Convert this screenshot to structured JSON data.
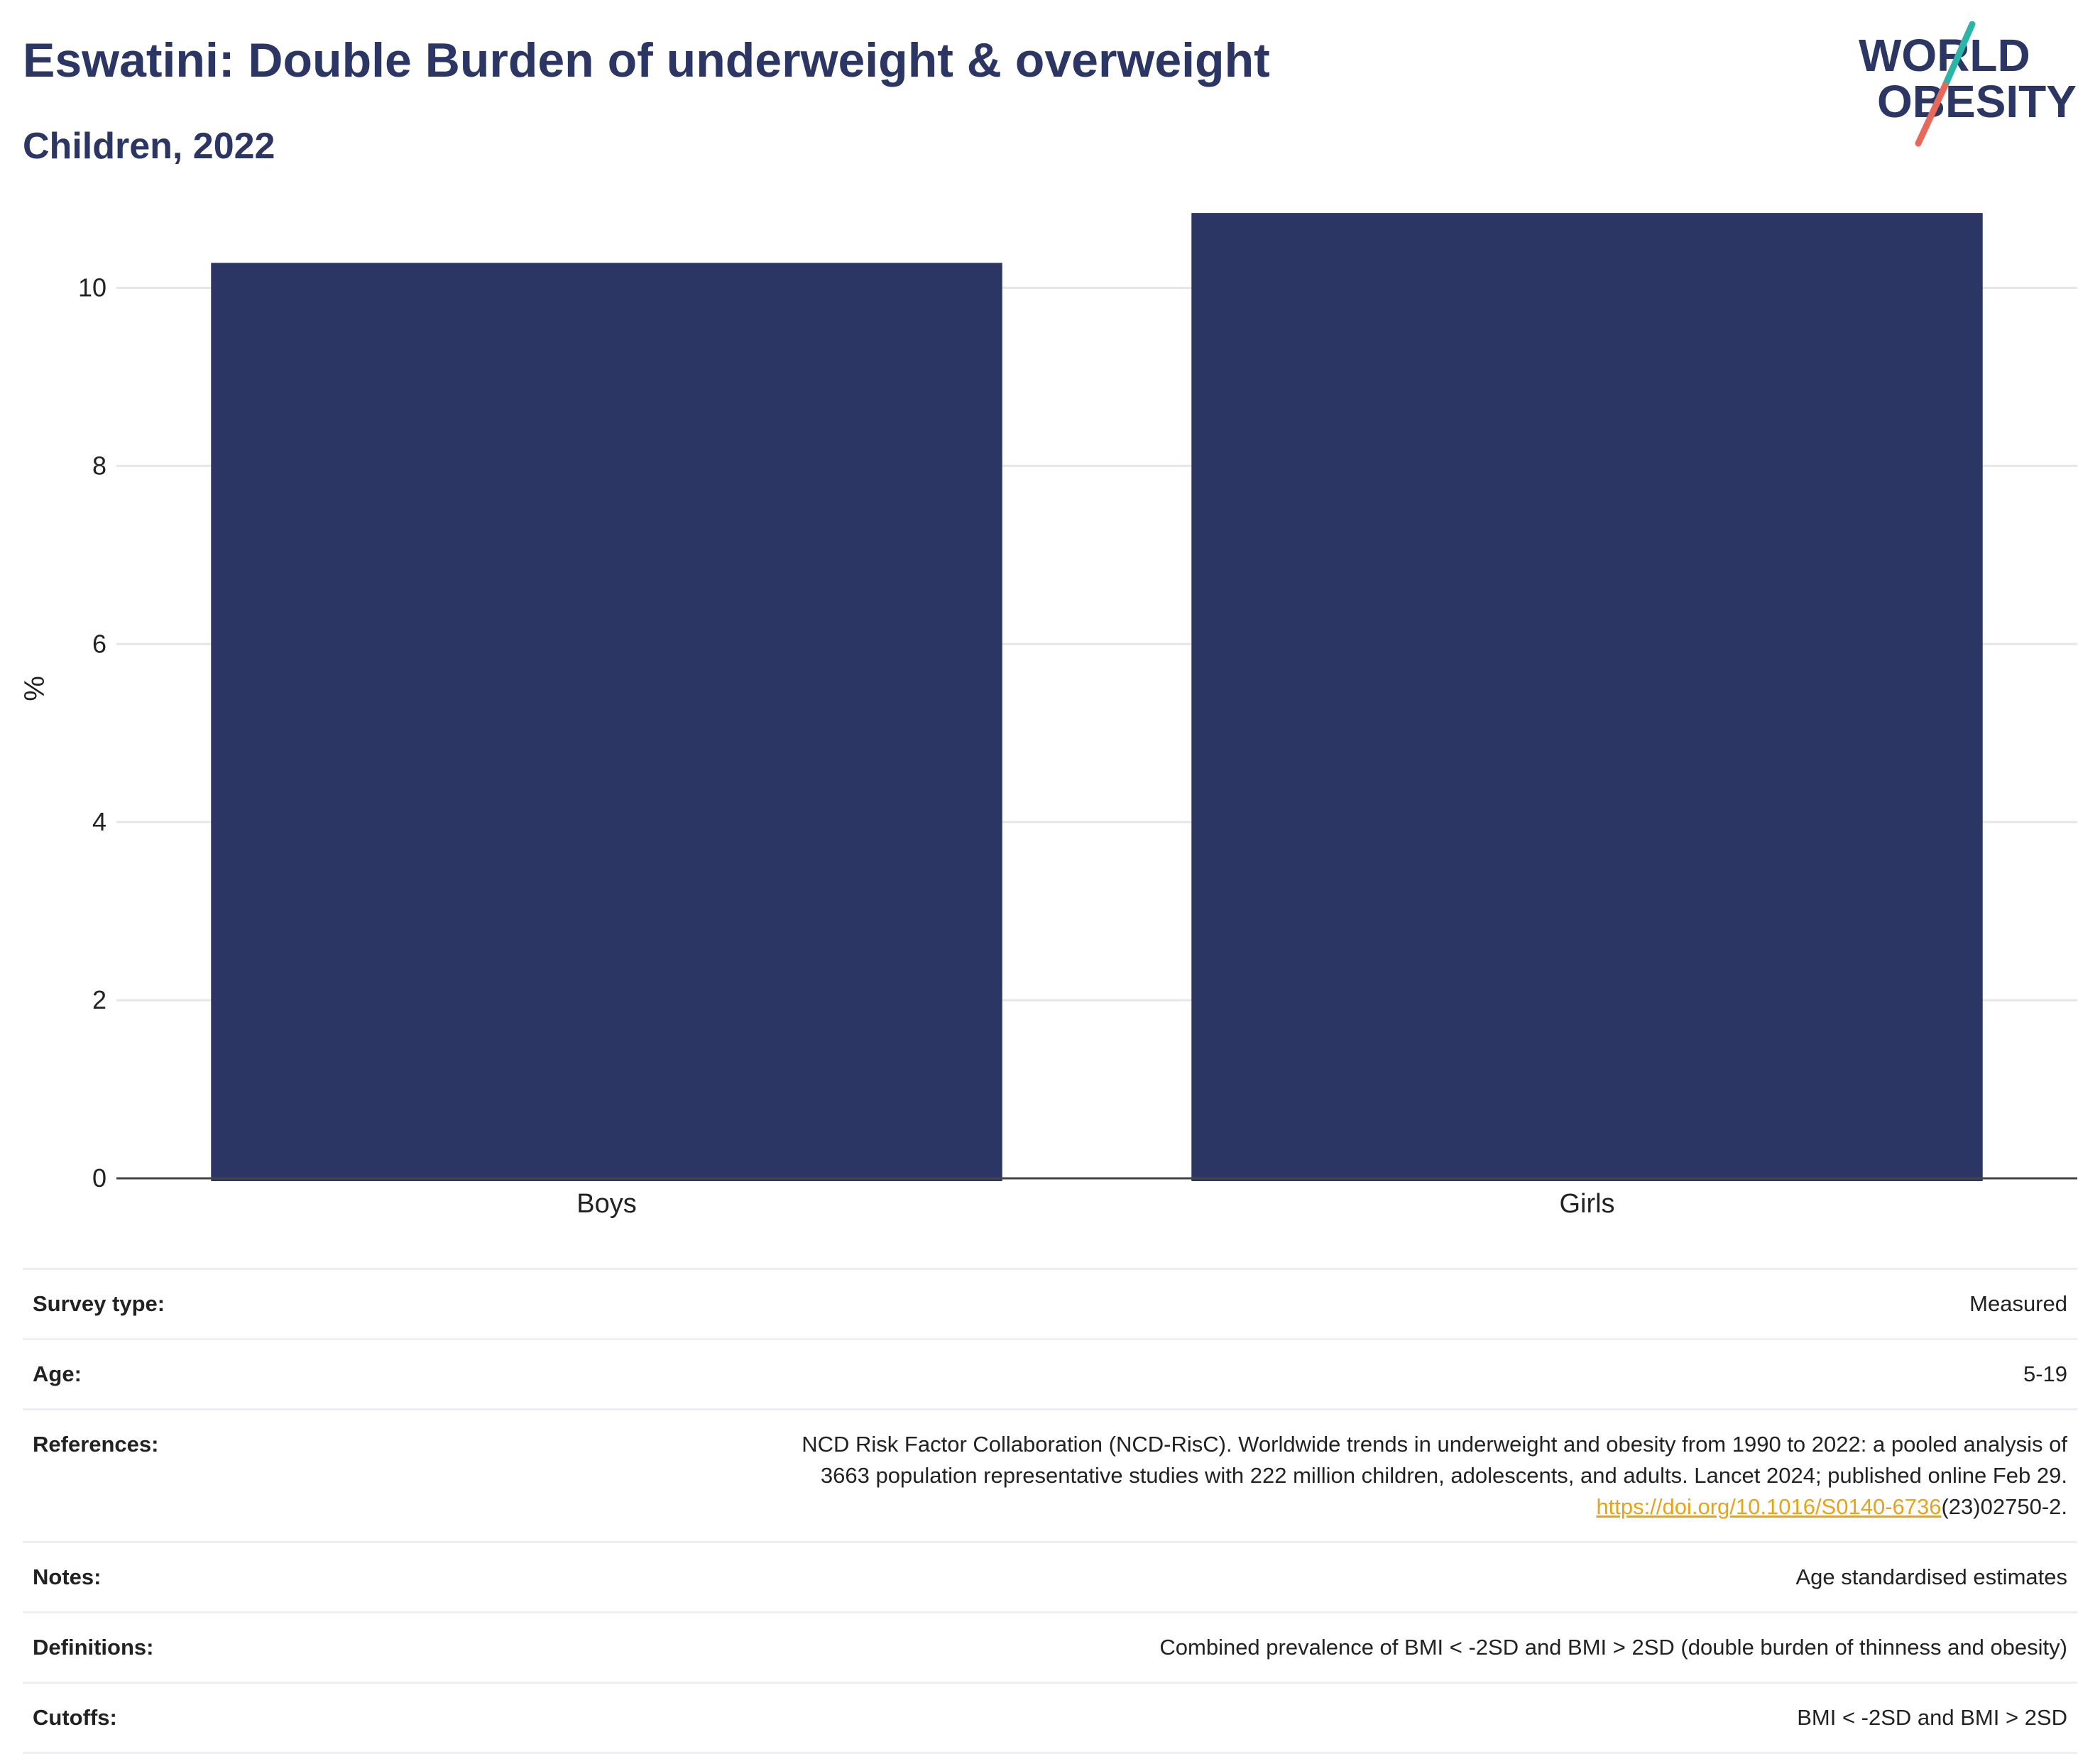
{
  "header": {
    "title": "Eswatini: Double Burden of underweight & overweight",
    "subtitle": "Children, 2022"
  },
  "logo": {
    "line1": "WORLD",
    "line2": "OBESITY"
  },
  "chart_data": {
    "type": "bar",
    "categories": [
      "Boys",
      "Girls"
    ],
    "series": [
      {
        "values": [
          10.28,
          10.84
        ]
      }
    ],
    "ylabel": "%",
    "ylim": [
      0,
      11
    ],
    "yticks": [
      0,
      2,
      4,
      6,
      8,
      10
    ],
    "grid": true,
    "colors": {
      "bar": "#2b3664",
      "grid": "#e6e6e6",
      "axis": "#444444"
    }
  },
  "meta": [
    {
      "key": "Survey type:",
      "value": "Measured"
    },
    {
      "key": "Age:",
      "value": "5-19"
    },
    {
      "key": "References:",
      "value_lines": [
        "NCD Risk Factor Collaboration (NCD-RisC). Worldwide trends in underweight and obesity from 1990 to 2022: a pooled analysis of",
        "3663 population representative studies with 222 million children, adolescents, and adults. Lancet 2024; published online Feb 29."
      ],
      "link": "https://doi.org/10.1016/S0140-6736",
      "link_suffix": "(23)02750-2."
    },
    {
      "key": "Notes:",
      "value": "Age standardised estimates"
    },
    {
      "key": "Definitions:",
      "value": "Combined prevalence of BMI < -2SD and BMI > 2SD (double burden of thinness and obesity)"
    },
    {
      "key": "Cutoffs:",
      "value": "BMI < -2SD and BMI > 2SD"
    }
  ]
}
